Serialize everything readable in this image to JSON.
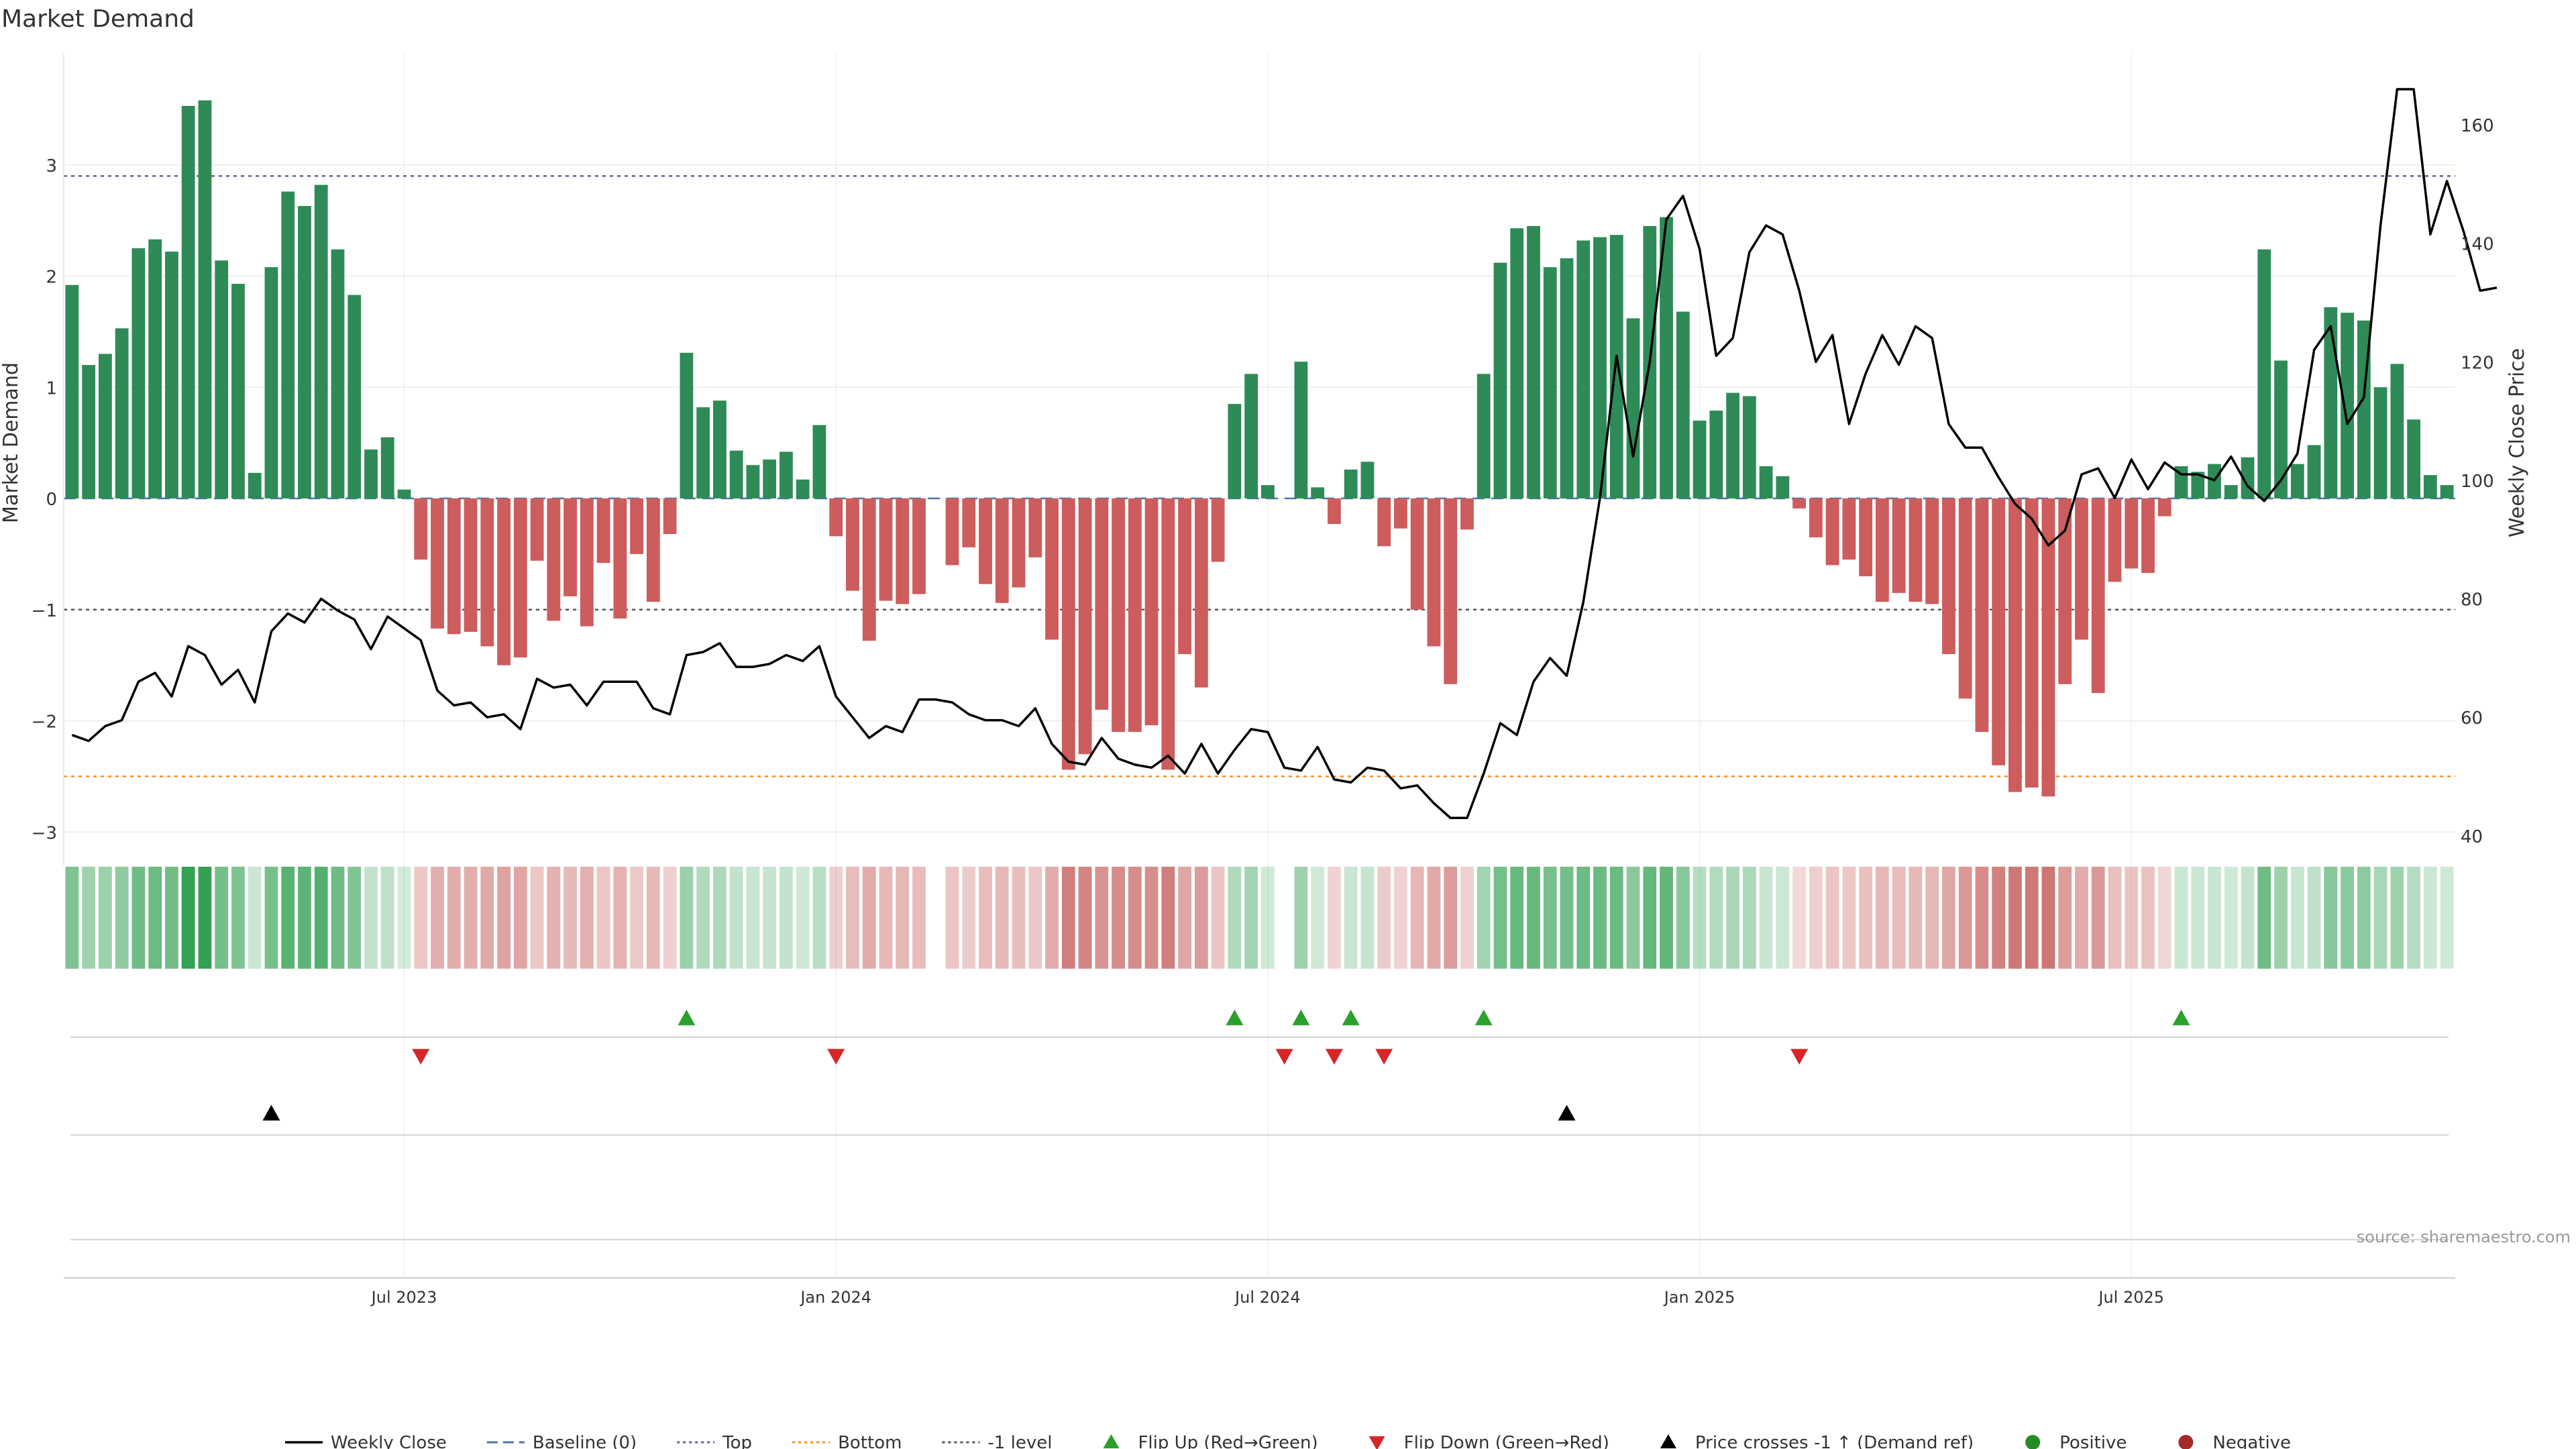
{
  "chart_data": {
    "type": "bar",
    "title": "Market Demand",
    "ylabel": "Market Demand",
    "ylabel_right": "Weekly Close Price",
    "ylim": [
      -3.3,
      4.0
    ],
    "ylim_right": [
      35,
      172
    ],
    "y_ticks": [
      3,
      2,
      1,
      0,
      -1,
      -2,
      -3
    ],
    "y_tick_labels": [
      "3",
      "2",
      "1",
      "0",
      "−1",
      "−2",
      "−3"
    ],
    "y_right_ticks": [
      160,
      140,
      120,
      100,
      80,
      60,
      40
    ],
    "y_right_tick_labels": [
      "160",
      "140",
      "120",
      "100",
      "80",
      "60",
      "40"
    ],
    "x_ticks": [
      {
        "label": "Jul 2023",
        "week": 20
      },
      {
        "label": "Jan 2024",
        "week": 46
      },
      {
        "label": "Jul 2024",
        "week": 72
      },
      {
        "label": "Jan 2025",
        "week": 98
      },
      {
        "label": "Jul 2025",
        "week": 124
      }
    ],
    "grid": true,
    "legend_position": "bottom",
    "reference_lines": [
      {
        "name": "Baseline (0)",
        "value": 0,
        "color": "#4a72b0",
        "style": "dashed"
      },
      {
        "name": "Top",
        "value": 2.9,
        "color": "#5b5ea6",
        "style": "dotted"
      },
      {
        "name": "Bottom",
        "value": -2.5,
        "color": "#ff8c1a",
        "style": "dotted"
      },
      {
        "name": "-1 level",
        "value": -1,
        "color": "#555555",
        "style": "dotted"
      }
    ],
    "series": [
      {
        "name": "Market Demand",
        "kind": "bar",
        "values": [
          1.92,
          1.2,
          1.3,
          1.53,
          2.25,
          2.33,
          2.22,
          3.53,
          3.58,
          2.14,
          1.93,
          0.23,
          2.08,
          2.76,
          2.63,
          2.82,
          2.24,
          1.83,
          0.44,
          0.55,
          0.08,
          -0.55,
          -1.17,
          -1.22,
          -1.2,
          -1.33,
          -1.5,
          -1.43,
          -0.56,
          -1.1,
          -0.88,
          -1.15,
          -0.58,
          -1.08,
          -0.5,
          -0.93,
          -0.32,
          1.31,
          0.82,
          0.88,
          0.43,
          0.3,
          0.35,
          0.42,
          0.17,
          0.66,
          -0.34,
          -0.83,
          -1.28,
          -0.92,
          -0.95,
          -0.86,
          null,
          -0.6,
          -0.44,
          -0.77,
          -0.94,
          -0.8,
          -0.53,
          -1.27,
          -2.44,
          -2.3,
          -1.9,
          -2.1,
          -2.1,
          -2.04,
          -2.44,
          -1.4,
          -1.7,
          -0.57,
          0.85,
          1.12,
          0.12,
          null,
          1.23,
          0.1,
          -0.23,
          0.26,
          0.33,
          -0.43,
          -0.27,
          -1.0,
          -1.33,
          -1.67,
          -0.28,
          1.12,
          2.12,
          2.43,
          2.45,
          2.08,
          2.16,
          2.32,
          2.35,
          2.37,
          1.62,
          2.45,
          2.53,
          1.68,
          0.7,
          0.79,
          0.95,
          0.92,
          0.29,
          0.2,
          -0.09,
          -0.35,
          -0.6,
          -0.55,
          -0.7,
          -0.93,
          -0.85,
          -0.93,
          -0.95,
          -1.4,
          -1.8,
          -2.1,
          -2.4,
          -2.64,
          -2.6,
          -2.68,
          -1.67,
          -1.27,
          -1.75,
          -0.75,
          -0.63,
          -0.67,
          -0.16,
          0.29,
          0.24,
          0.31,
          0.12,
          0.37,
          2.24,
          1.24,
          0.31,
          0.48,
          1.72,
          1.67,
          1.6,
          1.0,
          1.21,
          0.71,
          0.21,
          0.12
        ],
        "positive_color": "#2e8b57",
        "negative_color": "#cd5c5c"
      },
      {
        "name": "Weekly Close",
        "kind": "line",
        "axis": "right",
        "color": "#000000",
        "values": [
          57,
          56,
          58.5,
          59.5,
          66,
          67.5,
          63.5,
          72,
          70.5,
          65.5,
          68,
          62.5,
          74.5,
          77.5,
          76,
          80,
          78,
          76.5,
          71.5,
          77,
          75,
          73,
          64.5,
          62,
          62.5,
          60,
          60.5,
          58,
          66.5,
          65,
          65.5,
          62,
          66,
          66,
          66,
          61.5,
          60.5,
          70.5,
          71,
          72.5,
          68.5,
          68.5,
          69,
          70.5,
          69.5,
          72,
          63.5,
          60,
          56.5,
          58.5,
          57.5,
          63,
          63,
          62.5,
          60.5,
          59.5,
          59.5,
          58.5,
          61.5,
          55.5,
          52.5,
          52,
          56.5,
          53,
          52,
          51.5,
          53.5,
          50.5,
          55.5,
          50.5,
          54.5,
          58,
          57.5,
          51.5,
          51,
          55,
          49.5,
          49,
          51.5,
          51,
          48,
          48.5,
          45.5,
          43,
          43,
          50.5,
          59,
          57,
          66,
          70,
          67,
          79.5,
          97,
          121,
          104,
          120,
          144,
          148,
          139,
          121,
          124,
          138.5,
          143,
          141.5,
          132,
          120,
          124.5,
          109.5,
          118,
          124.5,
          119.5,
          126,
          124,
          109.5,
          105.5,
          105.5,
          100.5,
          96,
          93.5,
          89,
          91.5,
          101,
          102,
          97,
          103.5,
          98.5,
          103,
          101,
          101,
          100,
          104,
          99,
          96.5,
          100,
          104.5,
          122,
          126,
          109.5,
          114,
          143,
          166,
          166,
          141.5,
          150.5,
          142,
          132,
          132.5
        ],
        "positions": "week"
      }
    ],
    "color_strip": {
      "values_source": "Market Demand",
      "strong_positive_color": "#2e9e4e",
      "strong_negative_color": "#c0504d"
    },
    "markers": {
      "flip_up_weeks": [
        37,
        70,
        74,
        77,
        85,
        127
      ],
      "flip_down_weeks": [
        21,
        46,
        73,
        76,
        79,
        104
      ],
      "price_cross_weeks": [
        12,
        90
      ],
      "flip_up_color": "#2ca02c",
      "flip_down_color": "#d62728",
      "price_cross_color": "#000000"
    }
  },
  "legend": {
    "items": [
      {
        "label": "Weekly Close",
        "symbol": "line",
        "color": "#000000"
      },
      {
        "label": "Baseline (0)",
        "symbol": "dash",
        "color": "#4a72b0"
      },
      {
        "label": "Top",
        "symbol": "dot",
        "color": "#5b5ea6"
      },
      {
        "label": "Bottom",
        "symbol": "dot",
        "color": "#ff8c1a"
      },
      {
        "label": "-1 level",
        "symbol": "dot",
        "color": "#555555"
      },
      {
        "label": "Flip Up (Red→Green)",
        "symbol": "tri-up",
        "color": "#2ca02c"
      },
      {
        "label": "Flip Down (Green→Red)",
        "symbol": "tri-down",
        "color": "#d62728"
      },
      {
        "label": "Price crosses -1 ↑ (Demand ref)",
        "symbol": "tri-up",
        "color": "#000000"
      },
      {
        "label": "Positive",
        "symbol": "circle",
        "color": "#228b22"
      },
      {
        "label": "Negative",
        "symbol": "circle",
        "color": "#a52a2a"
      }
    ]
  },
  "source_note": "source: sharemaestro.com"
}
